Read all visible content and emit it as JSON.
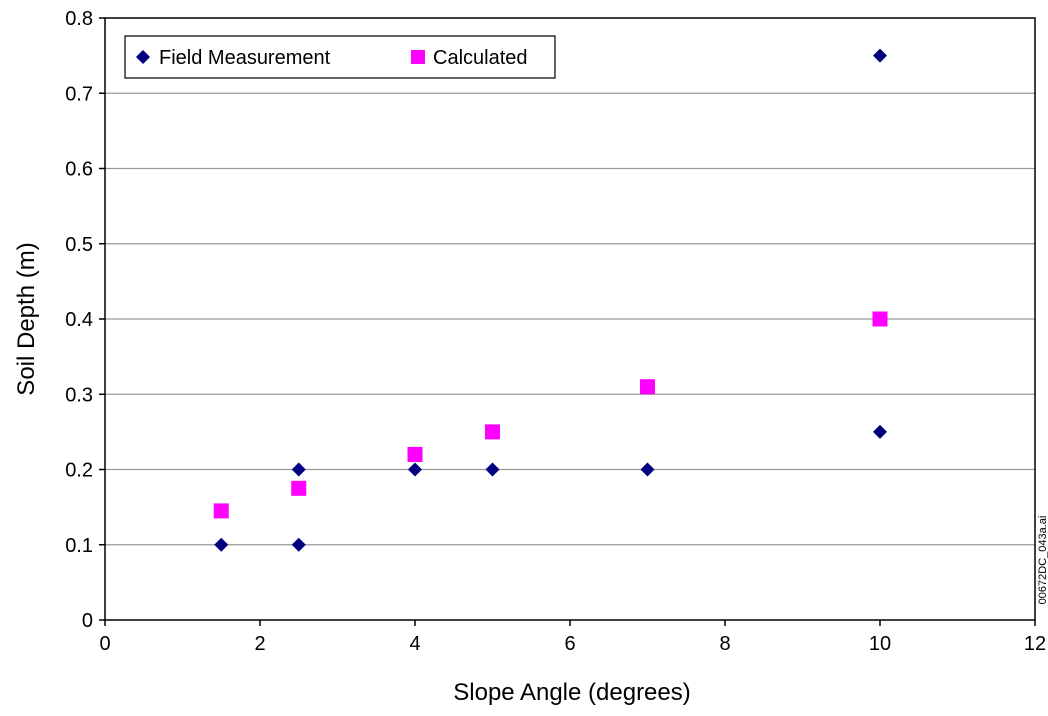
{
  "chart_data": {
    "type": "scatter",
    "title": "",
    "xlabel": "Slope Angle (degrees)",
    "ylabel": "Soil Depth (m)",
    "xlim": [
      0,
      12
    ],
    "ylim": [
      0,
      0.8
    ],
    "x_ticks": [
      0,
      2,
      4,
      6,
      8,
      10,
      12
    ],
    "x_tick_labels": [
      "0",
      "2",
      "4",
      "6",
      "8",
      "10",
      "12"
    ],
    "y_ticks": [
      0,
      0.1,
      0.2,
      0.3,
      0.4,
      0.5,
      0.6,
      0.7,
      0.8
    ],
    "y_tick_labels": [
      "0",
      "0.1",
      "0.2",
      "0.3",
      "0.4",
      "0.5",
      "0.6",
      "0.7",
      "0.8"
    ],
    "grid": "horizontal",
    "legend_position": "top-left",
    "series": [
      {
        "name": "Field Measurement",
        "marker": "diamond",
        "color": "#000080",
        "points": [
          {
            "x": 1.5,
            "y": 0.1
          },
          {
            "x": 2.5,
            "y": 0.2
          },
          {
            "x": 2.5,
            "y": 0.1
          },
          {
            "x": 4,
            "y": 0.2
          },
          {
            "x": 5,
            "y": 0.2
          },
          {
            "x": 7,
            "y": 0.2
          },
          {
            "x": 10,
            "y": 0.75
          },
          {
            "x": 10,
            "y": 0.25
          }
        ]
      },
      {
        "name": "Calculated",
        "marker": "square",
        "color": "#FF00FF",
        "points": [
          {
            "x": 1.5,
            "y": 0.145
          },
          {
            "x": 2.5,
            "y": 0.175
          },
          {
            "x": 4,
            "y": 0.22
          },
          {
            "x": 5,
            "y": 0.25
          },
          {
            "x": 7,
            "y": 0.31
          },
          {
            "x": 10,
            "y": 0.4
          }
        ]
      }
    ]
  },
  "side_label": "00672DC_043a.ai"
}
